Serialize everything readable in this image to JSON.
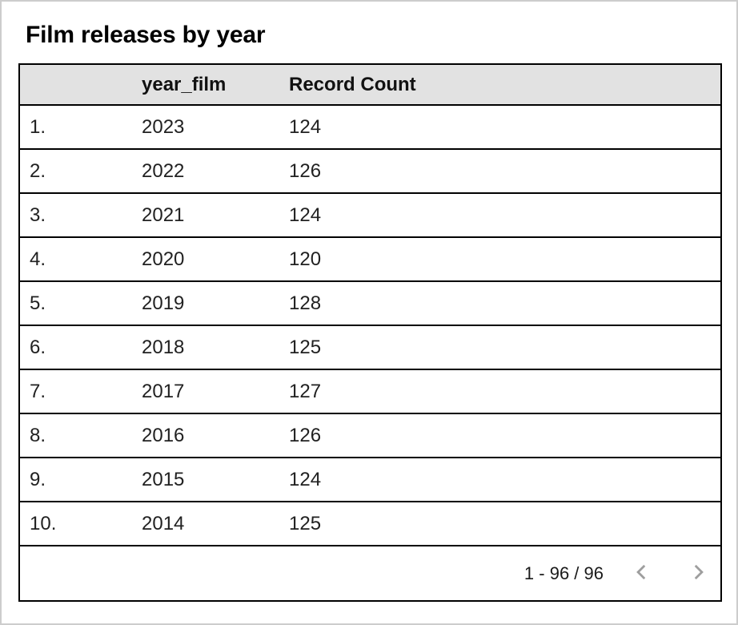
{
  "title": "Film releases by year",
  "table": {
    "columns": [
      "",
      "year_film",
      "Record Count"
    ],
    "rows": [
      {
        "index": "1.",
        "year_film": "2023",
        "record_count": "124"
      },
      {
        "index": "2.",
        "year_film": "2022",
        "record_count": "126"
      },
      {
        "index": "3.",
        "year_film": "2021",
        "record_count": "124"
      },
      {
        "index": "4.",
        "year_film": "2020",
        "record_count": "120"
      },
      {
        "index": "5.",
        "year_film": "2019",
        "record_count": "128"
      },
      {
        "index": "6.",
        "year_film": "2018",
        "record_count": "125"
      },
      {
        "index": "7.",
        "year_film": "2017",
        "record_count": "127"
      },
      {
        "index": "8.",
        "year_film": "2016",
        "record_count": "126"
      },
      {
        "index": "9.",
        "year_film": "2015",
        "record_count": "124"
      },
      {
        "index": "10.",
        "year_film": "2014",
        "record_count": "125"
      }
    ]
  },
  "pagination": {
    "range_label": "1 - 96 / 96",
    "prev_icon": "chevron-left",
    "next_icon": "chevron-right"
  },
  "colors": {
    "header_bg": "#e2e2e2",
    "table_border": "#000000",
    "frame_border": "#cdcdcd",
    "chevron": "#9e9e9e"
  },
  "chart_data": {
    "type": "table",
    "title": "Film releases by year",
    "columns": [
      "year_film",
      "Record Count"
    ],
    "rows": [
      [
        2023,
        124
      ],
      [
        2022,
        126
      ],
      [
        2021,
        124
      ],
      [
        2020,
        120
      ],
      [
        2019,
        128
      ],
      [
        2018,
        125
      ],
      [
        2017,
        127
      ],
      [
        2016,
        126
      ],
      [
        2015,
        124
      ],
      [
        2014,
        125
      ]
    ],
    "total_records": 96,
    "visible_range": "1 - 96"
  }
}
